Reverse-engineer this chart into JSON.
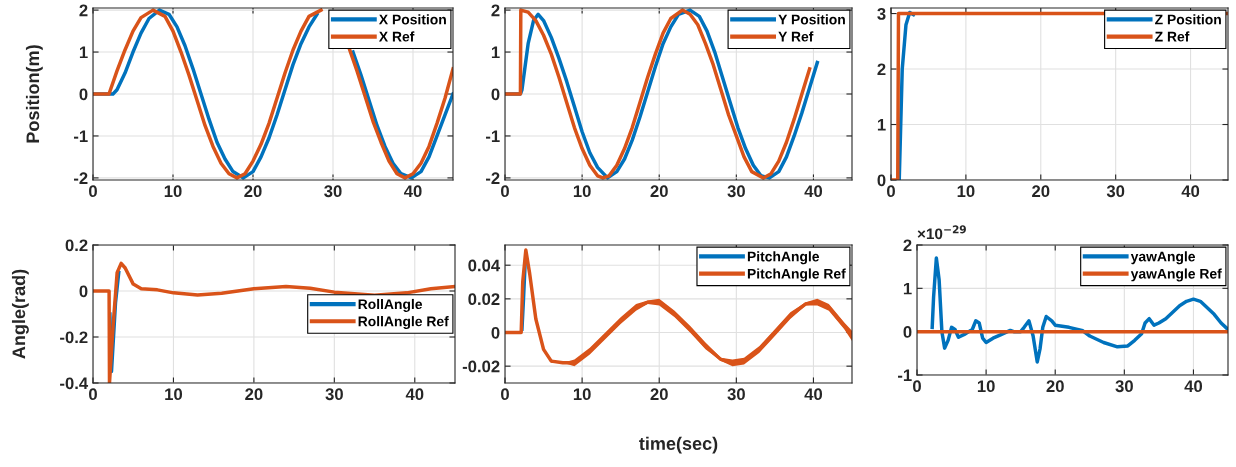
{
  "chart_data": [
    {
      "type": "line",
      "ylabel": "Position(m)",
      "xlim": [
        0,
        45
      ],
      "xticks": [
        0,
        10,
        20,
        30,
        40
      ],
      "ylim": [
        -2.05,
        2.05
      ],
      "yticks": [
        -2,
        -1,
        0,
        1,
        2
      ],
      "grid": true,
      "legend": "top right",
      "series": [
        {
          "name": "X Position",
          "color": "#0072bd",
          "x": [
            0,
            2.5,
            3,
            4,
            5,
            6,
            7,
            8.3,
            9.5,
            10.5,
            11.5,
            12.5,
            13.5,
            14.5,
            15.5,
            16.5,
            17.5,
            18.8,
            20,
            21,
            22,
            23,
            24,
            25,
            26,
            27,
            28,
            29.2,
            30.5,
            31.5,
            32.5,
            33.5,
            34.5,
            35.5,
            36.5,
            37.5,
            38.5,
            39.8,
            41,
            42,
            43,
            44,
            45
          ],
          "values": [
            0,
            0,
            0.1,
            0.5,
            1.0,
            1.45,
            1.8,
            2,
            1.9,
            1.6,
            1.15,
            0.6,
            0,
            -0.6,
            -1.15,
            -1.55,
            -1.85,
            -2,
            -1.85,
            -1.5,
            -1.05,
            -0.5,
            0.1,
            0.7,
            1.2,
            1.6,
            1.9,
            null,
            null,
            null,
            1.0,
            0.45,
            -0.15,
            -0.75,
            -1.25,
            -1.65,
            -1.9,
            -2,
            -1.85,
            -1.5,
            -1.0,
            -0.5,
            0
          ]
        },
        {
          "name": "X Ref",
          "color": "#d95319",
          "x": [
            0,
            2,
            3,
            4,
            5,
            6,
            7.5,
            9,
            10,
            11,
            12,
            13,
            14,
            15,
            16,
            17,
            18,
            19,
            20,
            21,
            22,
            23,
            24,
            25,
            26,
            27,
            28.5,
            30,
            31,
            32,
            33,
            34,
            35,
            36,
            37,
            38,
            39,
            40,
            41,
            42,
            43,
            44,
            45
          ],
          "values": [
            0,
            0,
            0.55,
            1.05,
            1.5,
            1.82,
            2,
            1.85,
            1.5,
            1.0,
            0.45,
            -0.15,
            -0.75,
            -1.25,
            -1.65,
            -1.9,
            -2,
            -1.9,
            -1.6,
            -1.2,
            -0.7,
            -0.1,
            0.5,
            1.05,
            1.5,
            1.85,
            2,
            null,
            null,
            1.1,
            0.55,
            -0.05,
            -0.65,
            -1.15,
            -1.6,
            -1.9,
            -2,
            -1.9,
            -1.65,
            -1.25,
            -0.7,
            -0.1,
            0.6
          ]
        }
      ]
    },
    {
      "type": "line",
      "xlim": [
        0,
        45
      ],
      "xticks": [
        0,
        10,
        20,
        30,
        40
      ],
      "ylim": [
        -2.05,
        2.05
      ],
      "yticks": [
        -2,
        -1,
        0,
        1,
        2
      ],
      "grid": true,
      "legend": "top right",
      "series": [
        {
          "name": "Y Position",
          "color": "#0072bd",
          "x": [
            0,
            2,
            2.2,
            3,
            3.7,
            4.3,
            5,
            6,
            7,
            8,
            9,
            10,
            11,
            12,
            13.3,
            14.5,
            15.5,
            16.5,
            17.5,
            18.5,
            19.5,
            20.5,
            21.5,
            22.5,
            24,
            25.2,
            26.2,
            27.2,
            28.2,
            29.2,
            30.2,
            31.2,
            32.2,
            33.2,
            34.3,
            35.5,
            36.5,
            37.5,
            38.5,
            39.5,
            40.5
          ],
          "values": [
            0,
            0,
            0.1,
            1.2,
            1.75,
            1.9,
            1.75,
            1.35,
            0.85,
            0.3,
            -0.3,
            -0.9,
            -1.4,
            -1.75,
            -2,
            -1.85,
            -1.55,
            -1.1,
            -0.55,
            0.05,
            0.65,
            1.2,
            1.6,
            1.9,
            2,
            1.85,
            1.5,
            1.0,
            0.4,
            -0.2,
            -0.8,
            -1.3,
            -1.7,
            -1.95,
            -2,
            -1.85,
            -1.5,
            -1.0,
            -0.45,
            0.15,
            0.75
          ]
        },
        {
          "name": "Y Ref",
          "color": "#d95319",
          "x": [
            0,
            2,
            2.05,
            3,
            4,
            5,
            6,
            7,
            8,
            9,
            10,
            11,
            12,
            12.7,
            13.5,
            14.5,
            15.5,
            16.5,
            17.5,
            18.5,
            19.5,
            20.5,
            21.5,
            23,
            24,
            25,
            26,
            27,
            28,
            29,
            30,
            31,
            32,
            33.5,
            34.5,
            35.5,
            36.5,
            37.5,
            38.5,
            39.5
          ],
          "values": [
            0,
            0,
            2,
            1.95,
            1.75,
            1.4,
            0.95,
            0.4,
            -0.2,
            -0.8,
            -1.3,
            -1.7,
            -1.95,
            -2,
            -1.95,
            -1.7,
            -1.3,
            -0.8,
            -0.2,
            0.4,
            0.95,
            1.45,
            1.8,
            2,
            1.9,
            1.65,
            1.2,
            0.7,
            0.1,
            -0.5,
            -1.0,
            -1.5,
            -1.85,
            -2,
            -1.9,
            -1.6,
            -1.15,
            -0.6,
            0,
            0.6
          ]
        }
      ]
    },
    {
      "type": "line",
      "xlim": [
        0,
        45
      ],
      "xticks": [
        0,
        10,
        20,
        30,
        40
      ],
      "ylim": [
        0,
        3.1
      ],
      "yticks": [
        0,
        1,
        2,
        3
      ],
      "grid": true,
      "legend": "top right",
      "series": [
        {
          "name": "Z Position",
          "color": "#0072bd",
          "x": [
            1.1,
            1.5,
            2,
            2.5,
            3
          ],
          "values": [
            0,
            2,
            2.8,
            3.02,
            2.98
          ]
        },
        {
          "name": "Z Ref",
          "color": "#d95319",
          "x": [
            0,
            0.9,
            1,
            45
          ],
          "values": [
            0,
            0,
            3,
            3
          ]
        }
      ]
    },
    {
      "type": "line",
      "ylabel": "Angle(rad)",
      "xlim": [
        0,
        45
      ],
      "xticks": [
        0,
        10,
        20,
        30,
        40
      ],
      "ylim": [
        -0.4,
        0.2
      ],
      "yticks": [
        -0.4,
        -0.2,
        0,
        0.2
      ],
      "grid": true,
      "legend": "right",
      "series": [
        {
          "name": "RollAngle",
          "color": "#0072bd",
          "x": [
            2.1,
            2.3,
            2.8,
            3.2
          ],
          "values": [
            -0.1,
            -0.35,
            -0.05,
            0.08
          ]
        },
        {
          "name": "RollAngle Ref",
          "color": "#d95319",
          "x": [
            0,
            2,
            2.05,
            2.5,
            3,
            3.5,
            4,
            5,
            6,
            8,
            10,
            13,
            16,
            20,
            24,
            27,
            30,
            35,
            39,
            42,
            45
          ],
          "values": [
            0,
            0,
            -0.4,
            -0.15,
            0.08,
            0.12,
            0.1,
            0.03,
            0.01,
            0.005,
            -0.008,
            -0.017,
            -0.01,
            0.01,
            0.02,
            0.012,
            -0.005,
            -0.018,
            -0.008,
            0.01,
            0.02
          ]
        }
      ]
    },
    {
      "type": "line",
      "xlabel": "time(sec)",
      "xlim": [
        0,
        45
      ],
      "xticks": [
        0,
        10,
        20,
        30,
        40
      ],
      "ylim": [
        -0.03,
        0.052
      ],
      "yticks": [
        -0.02,
        0,
        0.02,
        0.04
      ],
      "grid": true,
      "legend": "top right",
      "series": [
        {
          "name": "PitchAngle",
          "color": "#0072bd",
          "x": [
            2.2,
            2.4,
            2.6
          ],
          "values": [
            0.002,
            0.02,
            0.04
          ]
        },
        {
          "name": "PitchAngle Ref",
          "color": "#d95319",
          "x": [
            0,
            2.1,
            2.3,
            2.7,
            3.2,
            4,
            5,
            6,
            7.5,
            9,
            11,
            13,
            15,
            17,
            18.5,
            20,
            22,
            24,
            26,
            28,
            29.5,
            31,
            33,
            35,
            37,
            39,
            40.5,
            42,
            44,
            45
          ],
          "values": [
            0,
            0,
            0.03,
            0.049,
            0.035,
            0.008,
            -0.01,
            -0.017,
            -0.018,
            -0.018,
            -0.011,
            -0.002,
            0.007,
            0.015,
            0.018,
            0.018,
            0.011,
            0.002,
            -0.008,
            -0.016,
            -0.018,
            -0.017,
            -0.01,
            0,
            0.01,
            0.017,
            0.018,
            0.015,
            0.004,
            -0.002
          ],
          "lower": [
            0,
            0,
            0.03,
            0.048,
            0.034,
            0.007,
            -0.011,
            -0.018,
            -0.018,
            -0.02,
            -0.013,
            -0.004,
            0.005,
            0.013,
            0.017,
            0.016,
            0.009,
            0,
            -0.01,
            -0.017,
            -0.02,
            -0.019,
            -0.012,
            -0.002,
            0.008,
            0.016,
            0.016,
            0.013,
            0.002,
            -0.005
          ],
          "upper": [
            0,
            0,
            0.03,
            0.05,
            0.036,
            0.009,
            -0.009,
            -0.016,
            -0.018,
            -0.016,
            -0.009,
            0,
            0.009,
            0.017,
            0.019,
            0.02,
            0.013,
            0.004,
            -0.006,
            -0.015,
            -0.016,
            -0.015,
            -0.008,
            0.002,
            0.012,
            0.018,
            0.02,
            0.017,
            0.006,
            0.001
          ]
        }
      ]
    },
    {
      "type": "line",
      "xlim": [
        0,
        45
      ],
      "xticks": [
        0,
        10,
        20,
        30,
        40
      ],
      "ylim": [
        -1,
        2
      ],
      "yticks": [
        -1,
        0,
        1,
        2
      ],
      "grid": true,
      "legend": "top right",
      "annotations": [
        "×10$^{−29}$"
      ],
      "series": [
        {
          "name": "yawAngle",
          "color": "#0072bd",
          "x": [
            2.2,
            2.4,
            2.8,
            3.2,
            3.6,
            4,
            4.5,
            5,
            5.5,
            6,
            7,
            8,
            8.5,
            9,
            9.5,
            10,
            11,
            12,
            13.5,
            14,
            15,
            15.5,
            16.2,
            16.8,
            17.4,
            17.8,
            18.2,
            18.7,
            19.5,
            20,
            22,
            24,
            25,
            27,
            29,
            30.5,
            31.5,
            32.5,
            33,
            33.6,
            34.3,
            35,
            36,
            37,
            38,
            39,
            40,
            41,
            42,
            43,
            44,
            45
          ],
          "values": [
            0.1,
            0.8,
            1.7,
            1.2,
            0,
            -0.38,
            -0.2,
            0.1,
            0.05,
            -0.13,
            -0.05,
            0.05,
            0.25,
            0.2,
            -0.15,
            -0.25,
            -0.15,
            -0.08,
            0.03,
            0,
            0,
            0.1,
            0.25,
            -0.1,
            -0.7,
            -0.4,
            0.1,
            0.35,
            0.25,
            0.15,
            0.1,
            0.02,
            -0.1,
            -0.25,
            -0.35,
            -0.33,
            -0.2,
            -0.05,
            0.2,
            0.3,
            0.15,
            0.2,
            0.3,
            0.45,
            0.6,
            0.7,
            0.75,
            0.7,
            0.55,
            0.4,
            0.2,
            0.05
          ]
        },
        {
          "name": "yawAngle Ref",
          "color": "#d95319",
          "x": [
            0,
            45
          ],
          "values": [
            0,
            0
          ]
        }
      ]
    }
  ]
}
